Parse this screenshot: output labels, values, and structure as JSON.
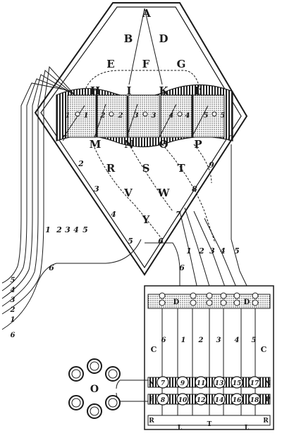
{
  "diamond_letters": [
    "A",
    "B",
    "D",
    "E",
    "F",
    "G",
    "H",
    "I",
    "K",
    "L",
    "M",
    "N",
    "O",
    "P",
    "R",
    "S",
    "T",
    "V",
    "W",
    "Y"
  ],
  "diamond_numbers": [
    "7",
    "2",
    "3",
    "4",
    "5",
    "6",
    "0",
    "9",
    "8",
    "7"
  ],
  "band_numbers": [
    "1",
    "1",
    "2",
    "2",
    "3",
    "3",
    "4",
    "4",
    "5",
    "5"
  ],
  "left_wire_numbers": [
    "1",
    "2",
    "3",
    "4",
    "5",
    "6"
  ],
  "left_edge_numbers": [
    "5",
    "4",
    "3",
    "2",
    "1",
    "6"
  ],
  "right_wire_numbers": [
    "6",
    "1",
    "2",
    "3",
    "4",
    "5"
  ],
  "box": {
    "top_letters": [
      "D",
      "D"
    ],
    "side_letters": [
      "C",
      "C"
    ],
    "column_numbers": [
      "6",
      "1",
      "2",
      "3",
      "4",
      "5"
    ],
    "row_n_label": "N",
    "row_p_label": "P",
    "bottom_letters": [
      "R",
      "L",
      "T",
      "L",
      "R"
    ],
    "row_n": [
      "7",
      "9",
      "11",
      "13",
      "15",
      "17"
    ],
    "row_p": [
      "8",
      "10",
      "12",
      "14",
      "16",
      "18"
    ]
  },
  "ring_label": "O"
}
